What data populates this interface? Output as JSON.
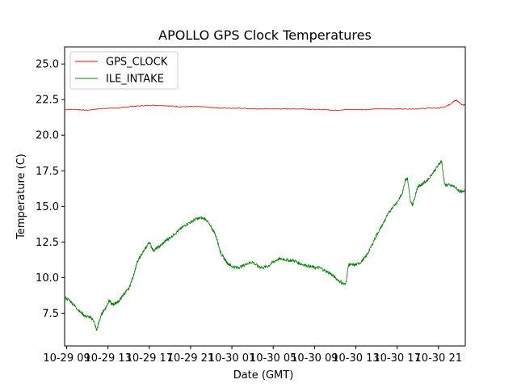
{
  "chart_data": {
    "type": "line",
    "title": "APOLLO GPS Clock Temperatures",
    "xlabel": "Date (GMT)",
    "ylabel": "Temperature (C)",
    "x_unit": "hours",
    "xlim": [
      8.8,
      47.6
    ],
    "ylim": [
      5.2,
      26.2
    ],
    "yticks": [
      7.5,
      10.0,
      12.5,
      15.0,
      17.5,
      20.0,
      22.5,
      25.0
    ],
    "ytick_labels": [
      "7.5",
      "10.0",
      "12.5",
      "15.0",
      "17.5",
      "20.0",
      "22.5",
      "25.0"
    ],
    "xticks": [
      9,
      13,
      17,
      21,
      25,
      29,
      33,
      37,
      41,
      45
    ],
    "xtick_labels": [
      "10-29 09",
      "10-29 13",
      "10-29 17",
      "10-29 21",
      "10-30 01",
      "10-30 05",
      "10-30 09",
      "10-30 13",
      "10-30 17",
      "10-30 21"
    ],
    "grid": false,
    "legend": "upper-left",
    "series": [
      {
        "name": "GPS_CLOCK",
        "color": "#ff0000",
        "x": [
          8.8,
          10.0,
          11.0,
          12.0,
          13.0,
          14.0,
          15.0,
          16.0,
          17.0,
          18.0,
          19.0,
          20.0,
          21.0,
          22.0,
          23.0,
          24.0,
          25.0,
          26.0,
          27.0,
          28.0,
          29.0,
          30.0,
          31.0,
          32.0,
          33.0,
          34.0,
          35.0,
          36.0,
          37.0,
          38.0,
          39.0,
          40.0,
          41.0,
          42.0,
          43.0,
          44.0,
          45.0,
          45.7,
          46.2,
          46.5,
          46.8,
          47.2,
          47.6
        ],
        "y": [
          21.8,
          21.8,
          21.75,
          21.85,
          21.9,
          21.9,
          22.0,
          22.05,
          22.1,
          22.1,
          22.05,
          22.0,
          22.0,
          22.0,
          21.95,
          21.9,
          21.9,
          21.9,
          21.85,
          21.85,
          21.85,
          21.85,
          21.85,
          21.85,
          21.8,
          21.8,
          21.75,
          21.8,
          21.8,
          21.8,
          21.85,
          21.85,
          21.85,
          21.85,
          21.85,
          21.9,
          21.9,
          22.0,
          22.2,
          22.4,
          22.45,
          22.15,
          22.1
        ]
      },
      {
        "name": "ILE_INTAKE",
        "color": "#008000",
        "x": [
          8.8,
          9.3,
          9.8,
          10.3,
          10.8,
          11.3,
          11.6,
          11.9,
          12.3,
          12.5,
          12.8,
          13.1,
          13.4,
          13.7,
          14.0,
          14.3,
          14.6,
          15.0,
          15.4,
          15.8,
          16.2,
          16.6,
          17.0,
          17.4,
          17.8,
          18.2,
          18.6,
          19.0,
          19.5,
          20.0,
          20.5,
          21.0,
          21.5,
          22.0,
          22.5,
          23.0,
          23.3,
          23.6,
          23.8,
          24.0,
          24.3,
          24.6,
          25.0,
          25.5,
          26.0,
          26.5,
          27.0,
          27.5,
          28.0,
          28.5,
          29.0,
          29.5,
          30.0,
          30.5,
          31.0,
          31.5,
          32.0,
          32.5,
          33.0,
          33.5,
          34.0,
          34.5,
          35.0,
          35.5,
          36.0,
          36.3,
          36.5,
          37.0,
          37.5,
          38.0,
          38.5,
          39.0,
          39.5,
          40.0,
          40.5,
          41.0,
          41.5,
          41.8,
          42.0,
          42.3,
          42.5,
          42.8,
          43.0,
          43.3,
          43.5,
          44.0,
          44.5,
          45.0,
          45.3,
          45.6,
          46.0,
          46.5,
          47.0,
          47.3,
          47.6
        ],
        "y": [
          8.6,
          8.4,
          8.0,
          7.6,
          7.3,
          7.2,
          7.0,
          6.3,
          7.3,
          7.6,
          7.9,
          8.4,
          8.1,
          8.2,
          8.3,
          8.6,
          8.9,
          9.2,
          10.0,
          11.0,
          11.6,
          12.0,
          12.5,
          11.9,
          12.1,
          12.3,
          12.6,
          12.8,
          13.1,
          13.4,
          13.7,
          13.9,
          14.1,
          14.2,
          14.1,
          13.5,
          13.2,
          12.6,
          12.0,
          11.6,
          11.3,
          11.0,
          10.8,
          10.7,
          10.8,
          11.0,
          11.1,
          10.8,
          10.7,
          10.8,
          11.1,
          11.3,
          11.3,
          11.2,
          11.2,
          11.0,
          10.9,
          10.8,
          10.7,
          10.7,
          10.5,
          10.3,
          10.0,
          9.7,
          9.5,
          10.9,
          10.9,
          10.9,
          11.1,
          11.5,
          12.2,
          13.0,
          13.6,
          14.3,
          14.9,
          15.3,
          15.9,
          16.9,
          17.0,
          15.3,
          15.1,
          15.9,
          16.4,
          16.5,
          16.6,
          16.9,
          17.4,
          17.9,
          18.2,
          16.5,
          16.5,
          16.4,
          16.1,
          16.0,
          16.2
        ]
      }
    ]
  }
}
